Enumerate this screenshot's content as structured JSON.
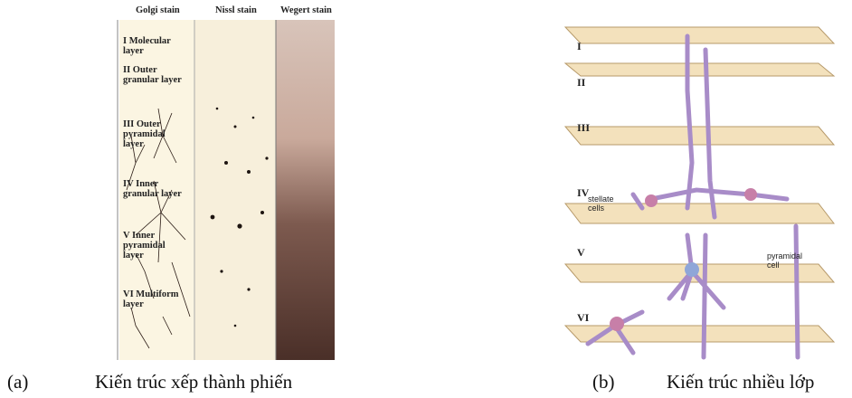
{
  "figure_a": {
    "column_headers": [
      "Golgi stain",
      "Nissl stain",
      "Wegert stain"
    ],
    "layers": [
      "I Molecular layer",
      "II Outer granular layer",
      "III Outer pyramidal layer",
      "IV Inner granular layer",
      "V Inner pyramidal layer",
      "VI Multiform layer"
    ],
    "caption": {
      "label": "(a)",
      "text": "Kiến trúc xếp thành phiến"
    }
  },
  "figure_b": {
    "layers": [
      "I",
      "II",
      "III",
      "IV",
      "V",
      "VI"
    ],
    "annotations": [
      "stellate cells",
      "pyramidal cell"
    ],
    "caption": {
      "label": "(b)",
      "text": "Kiến trúc nhiều lớp"
    }
  }
}
